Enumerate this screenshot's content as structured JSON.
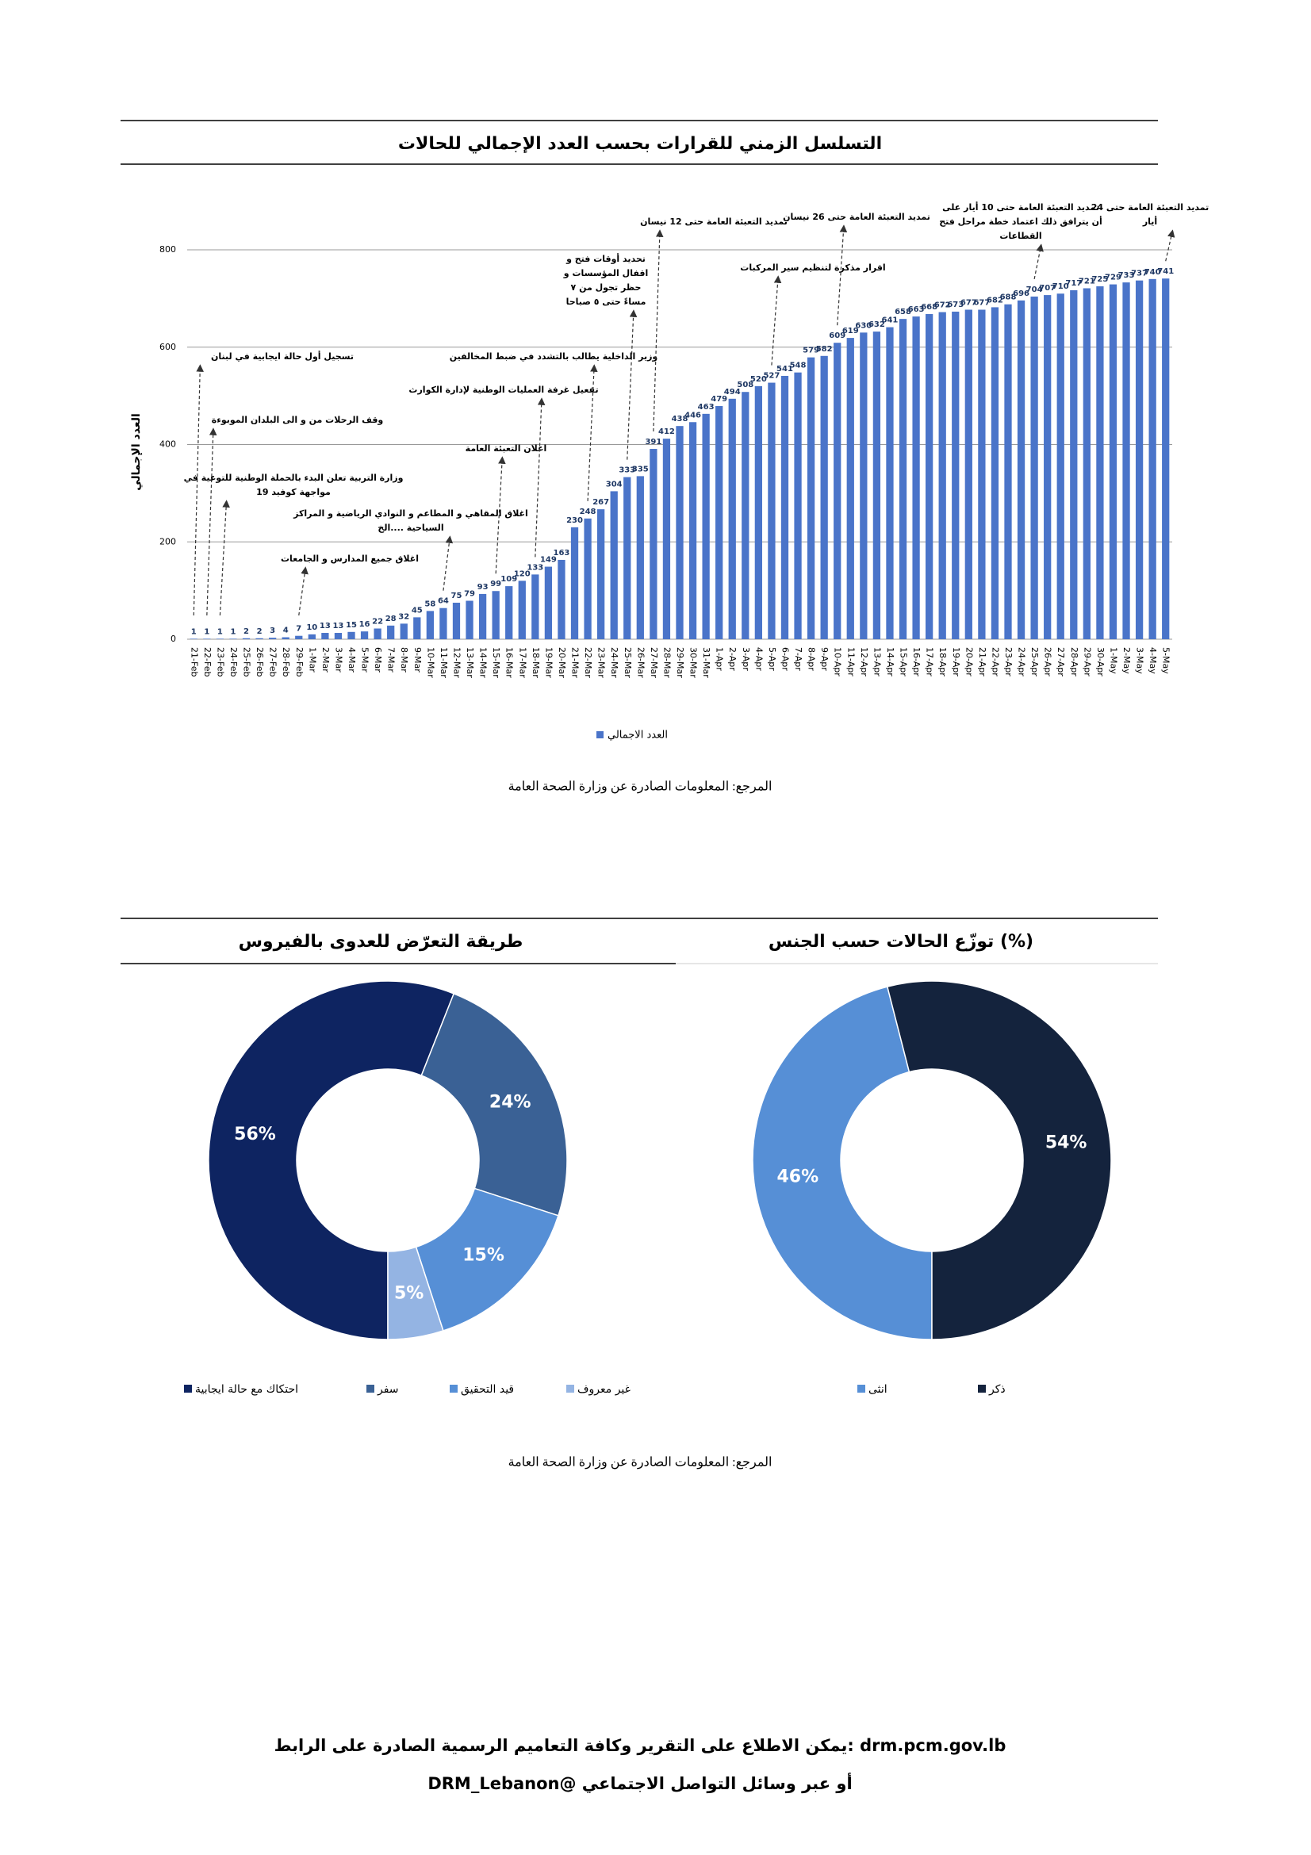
{
  "chart_data": [
    {
      "type": "bar",
      "title": "التسلسل الزمني للقرارات بحسب العدد الإجمالي للحالات",
      "y_label": "العدد الإجمالي",
      "series": [
        {
          "name": "العدد الاجمالي",
          "color": "#4a74c9",
          "values": [
            1,
            1,
            1,
            1,
            2,
            2,
            3,
            4,
            7,
            10,
            13,
            13,
            15,
            16,
            22,
            28,
            32,
            45,
            58,
            64,
            75,
            79,
            93,
            99,
            109,
            120,
            133,
            149,
            163,
            230,
            248,
            267,
            304,
            333,
            335,
            391,
            412,
            438,
            446,
            463,
            479,
            494,
            508,
            520,
            527,
            541,
            548,
            579,
            582,
            609,
            619,
            630,
            632,
            641,
            658,
            663,
            668,
            672,
            673,
            677,
            677,
            682,
            688,
            696,
            704,
            707,
            710,
            717,
            721,
            725,
            729,
            733,
            737,
            740,
            741
          ]
        }
      ],
      "categories": [
        "21-Feb",
        "22-Feb",
        "23-Feb",
        "24-Feb",
        "25-Feb",
        "26-Feb",
        "27-Feb",
        "28-Feb",
        "29-Feb",
        "1-Mar",
        "2-Mar",
        "3-Mar",
        "4-Mar",
        "5-Mar",
        "6-Mar",
        "7-Mar",
        "8-Mar",
        "9-Mar",
        "10-Mar",
        "11-Mar",
        "12-Mar",
        "13-Mar",
        "14-Mar",
        "15-Mar",
        "16-Mar",
        "17-Mar",
        "18-Mar",
        "19-Mar",
        "20-Mar",
        "21-Mar",
        "22-Mar",
        "23-Mar",
        "24-Mar",
        "25-Mar",
        "26-Mar",
        "27-Mar",
        "28-Mar",
        "29-Mar",
        "30-Mar",
        "31-Mar",
        "1-Apr",
        "2-Apr",
        "3-Apr",
        "4-Apr",
        "5-Apr",
        "6-Apr",
        "7-Apr",
        "8-Apr",
        "9-Apr",
        "10-Apr",
        "11-Apr",
        "12-Apr",
        "13-Apr",
        "14-Apr",
        "15-Apr",
        "16-Apr",
        "17-Apr",
        "18-Apr",
        "19-Apr",
        "20-Apr",
        "21-Apr",
        "22-Apr",
        "23-Apr",
        "24-Apr",
        "25-Apr",
        "26-Apr",
        "27-Apr",
        "28-Apr",
        "29-Apr",
        "30-Apr",
        "1-May",
        "2-May",
        "3-May",
        "4-May",
        "5-May"
      ],
      "ylim": [
        0,
        800
      ],
      "yticks": [
        0,
        200,
        400,
        600,
        800
      ],
      "grid": true,
      "annotations": [
        {
          "category": "21-Feb",
          "lines": [
            "تسجيل أول حالة ايجابية في لبنان"
          ]
        },
        {
          "category": "22-Feb",
          "lines": [
            "وقف الرحلات من و الى البلدان الموبوءة"
          ]
        },
        {
          "category": "23-Feb",
          "lines": [
            "وزارة التربية تعلن البدء بالحملة الوطنية للتوعية في",
            "مواجهة كوفيد 19"
          ]
        },
        {
          "category": "29-Feb",
          "lines": [
            "اغلاق جميع المدارس و الجامعات"
          ]
        },
        {
          "category": "11-Mar",
          "lines": [
            "اغلاق المقاهي و المطاعم و النوادي الرياضية و المراكز",
            "السياحية ....الخ"
          ]
        },
        {
          "category": "15-Mar",
          "lines": [
            "اعلان التعبئة العامة"
          ]
        },
        {
          "category": "18-Mar",
          "lines": [
            "تفعيل غرفة العمليات الوطنية لإدارة الكوارث"
          ]
        },
        {
          "category": "22-Mar",
          "lines": [
            "وزير الداخلية يطالب بالتشدد في ضبط المخالفين"
          ]
        },
        {
          "category": "25-Mar",
          "lines": [
            "تحديد أوقات فتح و",
            "اقفال المؤسسات و",
            "حظر تجول من ٧",
            "مساءً حتى ٥ صباحا"
          ]
        },
        {
          "category": "27-Mar",
          "lines": [
            "تمديد التعبئة العامة حتى 12 نيسان"
          ]
        },
        {
          "category": "5-Apr",
          "lines": [
            "اقرار مذكرة لتنظيم سير المركبات"
          ]
        },
        {
          "category": "10-Apr",
          "lines": [
            "تمديد التعبئة العامة حتى 26 نيسان"
          ]
        },
        {
          "category": "25-Apr",
          "lines": [
            "تمديد التعبئة العامة حتى 10 أيار على",
            "أن يترافق ذلك اعتماد خطة مراحل فتح",
            "القطاعات"
          ]
        },
        {
          "category": "5-May",
          "lines": [
            "تمديد التعبئة العامة حتى 24",
            "أيار"
          ]
        }
      ]
    },
    {
      "type": "donut",
      "title": "طريقة التعرّض للعدوى بالفيروس",
      "labels": [
        "احتكاك مع حالة ايجابية",
        "سفر",
        "قيد التحقيق",
        "غير معروف"
      ],
      "values": [
        56,
        24,
        15,
        5
      ],
      "value_labels": [
        "56%",
        "24%",
        "15%",
        "5%"
      ],
      "colors": [
        "#0e2461",
        "#3a6195",
        "#568fd6",
        "#94b4e3"
      ]
    },
    {
      "type": "donut",
      "title": "توزّع الحالات حسب الجنس (%)",
      "labels": [
        "انثى",
        "ذكر"
      ],
      "values": [
        46,
        54
      ],
      "value_labels": [
        "46%",
        "54%"
      ],
      "colors": [
        "#568fd6",
        "#14233d"
      ]
    }
  ],
  "notes": [
    "المرجع: المعلومات الصادرة عن وزارة الصحة العامة",
    "المرجع: المعلومات الصادرة عن وزارة الصحة العامة"
  ],
  "footer": [
    "يمكن الاطلاع على التقرير وكافة التعاميم الرسمية الصادرة على الرابط: drm.pcm.gov.lb",
    "أو عبر وسائل التواصل الاجتماعي @DRM_Lebanon"
  ]
}
